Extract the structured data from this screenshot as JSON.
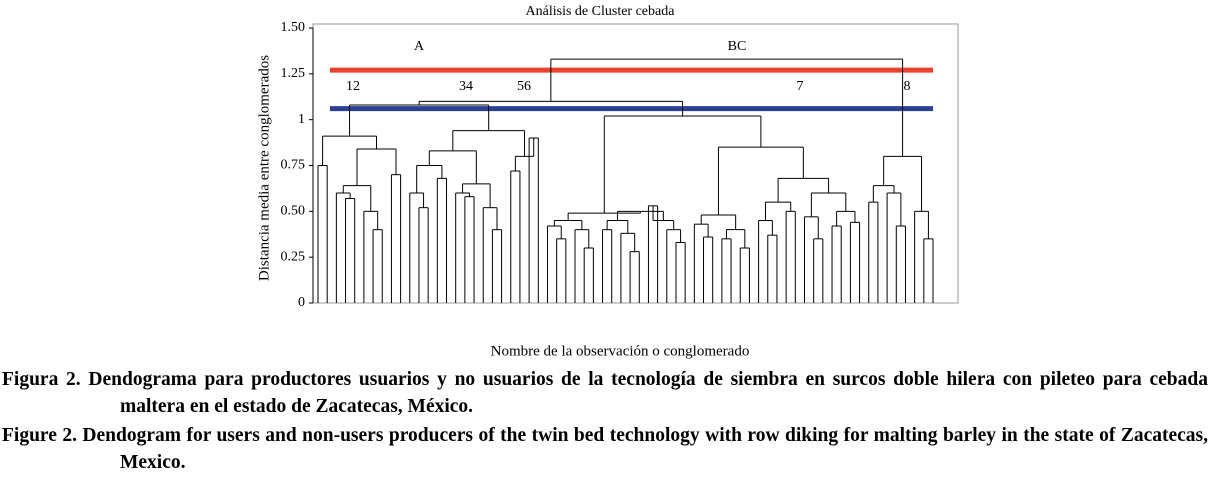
{
  "chart_data": {
    "type": "dendrogram",
    "title": "Análisis de Cluster cebada",
    "y_label": "Distancia media entre conglomerados",
    "x_label": "Nombre de la observación o conglomerado",
    "ylim": [
      0,
      1.5
    ],
    "yticks": [
      0,
      0.25,
      {
        "value": 0.5,
        "label": "0.50"
      },
      0.75,
      1,
      1.25,
      {
        "value": 1.5,
        "label": "1.50"
      }
    ],
    "cut_lines": [
      {
        "value": 1.27,
        "color": "#e8412c"
      },
      {
        "value": 1.06,
        "color": "#2b3f93"
      }
    ],
    "cluster_labels": [
      "A",
      "BC",
      "12",
      "34",
      "56",
      "7",
      "8"
    ],
    "color": "#000000",
    "tree": [
      1.33,
      [
        1.1,
        [
          1.08,
          [
            0.91,
            [
              0.75,
              0,
              0
            ],
            [
              0.84,
              [
                0.64,
                [
                  0.6,
                  0,
                  [
                    0.57,
                    0,
                    0
                  ]
                ],
                [
                  0.5,
                  0,
                  [
                    0.4,
                    0,
                    0
                  ]
                ]
              ],
              [
                0.7,
                0,
                0
              ]
            ]
          ],
          [
            0.94,
            [
              0.83,
              [
                0.75,
                [
                  0.6,
                  0,
                  [
                    0.52,
                    0,
                    0
                  ]
                ],
                [
                  0.68,
                  0,
                  0
                ]
              ],
              [
                0.65,
                [
                  0.6,
                  0,
                  [
                    0.58,
                    0,
                    0
                  ]
                ],
                [
                  0.52,
                  0,
                  [
                    0.4,
                    0,
                    0
                  ]
                ]
              ]
            ],
            [
              0.8,
              [
                0.72,
                0,
                0
              ],
              [
                0.9,
                0,
                0
              ]
            ]
          ]
        ],
        [
          1.02,
          [
            0.49,
            [
              0.45,
              [
                0.42,
                0,
                [
                  0.35,
                  0,
                  0
                ]
              ],
              [
                0.4,
                0,
                [
                  0.3,
                  0,
                  0
                ]
              ]
            ],
            [
              0.5,
              [
                0.45,
                [
                  0.4,
                  0,
                  0
                ],
                [
                  0.38,
                  0,
                  [
                    0.28,
                    0,
                    0
                  ]
                ]
              ],
              [
                0.45,
                [
                  0.53,
                  0,
                  0
                ],
                [
                  0.4,
                  0,
                  [
                    0.33,
                    0,
                    0
                  ]
                ]
              ]
            ]
          ],
          [
            0.85,
            [
              0.48,
              [
                0.43,
                0,
                [
                  0.36,
                  0,
                  0
                ]
              ],
              [
                0.4,
                [
                  0.35,
                  0,
                  0
                ],
                [
                  0.3,
                  0,
                  0
                ]
              ]
            ],
            [
              0.68,
              [
                0.55,
                [
                  0.45,
                  0,
                  [
                    0.37,
                    0,
                    0
                  ]
                ],
                [
                  0.5,
                  0,
                  0
                ]
              ],
              [
                0.6,
                [
                  0.47,
                  0,
                  [
                    0.35,
                    0,
                    0
                  ]
                ],
                [
                  0.5,
                  [
                    0.42,
                    0,
                    0
                  ],
                  [
                    0.44,
                    0,
                    0
                  ]
                ]
              ]
            ]
          ]
        ]
      ],
      [
        0.8,
        [
          0.64,
          [
            0.55,
            0,
            0
          ],
          [
            0.6,
            0,
            [
              0.42,
              0,
              0
            ]
          ]
        ],
        [
          0.5,
          0,
          [
            0.35,
            0,
            0
          ]
        ]
      ]
    ]
  },
  "caption_es": "Figura 2. Dendograma para productores usuarios y no usuarios de la tecnología de siembra en surcos doble hilera con pileteo para cebada maltera en el estado de Zacatecas, México.",
  "caption_en": "Figure 2. Dendogram for users and non-users producers of the twin bed technology with row diking for malting barley in the state of Zacatecas, Mexico."
}
